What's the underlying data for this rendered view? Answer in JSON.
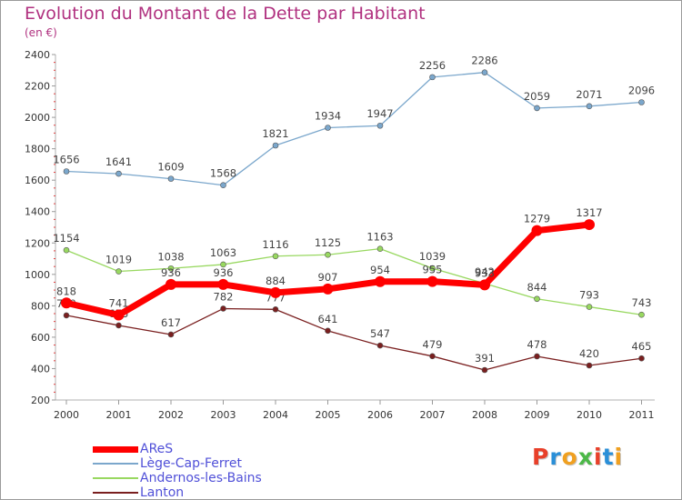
{
  "title": "Evolution du Montant de la Dette par Habitant",
  "subtitle": "(en €)",
  "logo": {
    "letters": [
      "P",
      "r",
      "o",
      "x",
      "i",
      "t",
      "i"
    ],
    "colors": [
      "#e8402a",
      "#2a8fd8",
      "#f0a020",
      "#4cb848",
      "#e8402a",
      "#2a8fd8",
      "#f0a020"
    ]
  },
  "chart_data": {
    "type": "line",
    "x": [
      "2000",
      "2001",
      "2002",
      "2003",
      "2004",
      "2005",
      "2006",
      "2007",
      "2008",
      "2009",
      "2010",
      "2011"
    ],
    "ylim": [
      200,
      2400
    ],
    "yticks": [
      200,
      400,
      600,
      800,
      1000,
      1200,
      1400,
      1600,
      1800,
      2000,
      2200,
      2400
    ],
    "grid": false,
    "legend_position": "bottom-left",
    "series": [
      {
        "name": "AReS",
        "color": "#ff0000",
        "values": [
          818,
          741,
          936,
          936,
          884,
          907,
          954,
          955,
          933,
          1279,
          1317,
          null
        ]
      },
      {
        "name": "Lège-Cap-Ferret",
        "color": "#7ba7cc",
        "values": [
          1656,
          1641,
          1609,
          1568,
          1821,
          1934,
          1947,
          2256,
          2286,
          2059,
          2071,
          2096
        ]
      },
      {
        "name": "Andernos-les-Bains",
        "color": "#98d860",
        "values": [
          1154,
          1019,
          1038,
          1063,
          1116,
          1125,
          1163,
          1039,
          942,
          844,
          793,
          743
        ]
      },
      {
        "name": "Lanton",
        "color": "#7a1f1f",
        "values": [
          739,
          675,
          617,
          782,
          777,
          641,
          547,
          479,
          391,
          478,
          420,
          465
        ]
      }
    ]
  }
}
